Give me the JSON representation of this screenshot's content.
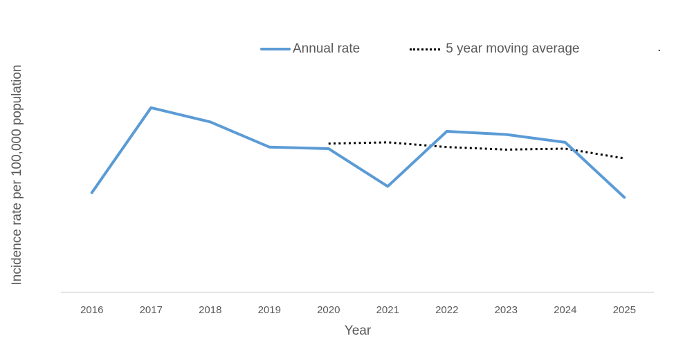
{
  "chart": {
    "background": "#FFFFFF",
    "axis_line_color": "#BFBFBF",
    "text_color": "#595959",
    "legend": [
      {
        "label": "Annual rate",
        "color": "#5B9BD5",
        "style": "solid"
      },
      {
        "label": "5 year moving average",
        "color": "#000000",
        "style": "dotted"
      }
    ],
    "stray_mark": "."
  },
  "chart_data": {
    "type": "line",
    "title": "",
    "xlabel": "Year",
    "ylabel": "Incidence rate per 100,000 population",
    "categories": [
      "2016",
      "2017",
      "2018",
      "2019",
      "2020",
      "2021",
      "2022",
      "2023",
      "2024",
      "2025"
    ],
    "series": [
      {
        "name": "Annual rate",
        "color": "#5B9BD5",
        "style": "solid",
        "values": [
          6.3,
          11.7,
          10.8,
          9.2,
          9.1,
          6.7,
          10.2,
          10.0,
          9.5,
          6.0
        ]
      },
      {
        "name": "5 year moving average",
        "color": "#000000",
        "style": "dotted",
        "values": [
          null,
          null,
          null,
          null,
          9.42,
          9.5,
          9.2,
          9.04,
          9.1,
          8.48
        ]
      }
    ],
    "ylim": [
      0,
      16
    ],
    "ytick_step": 2,
    "grid": false,
    "legend_position": "top-center"
  }
}
